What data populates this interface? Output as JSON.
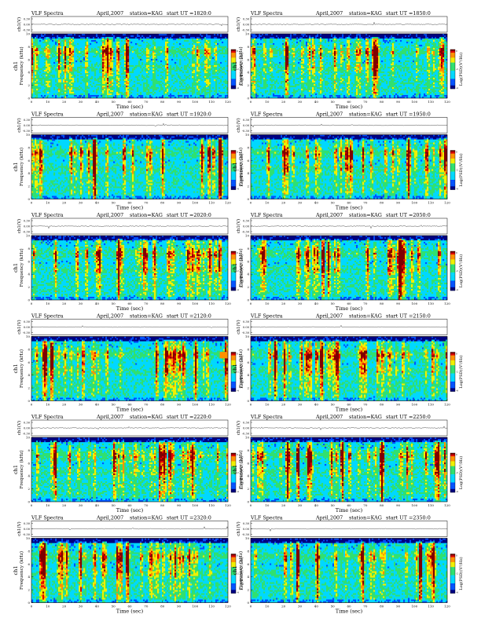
{
  "common": {
    "product": "VLF Spectra",
    "date": "April,2007",
    "station": "station=KAG",
    "ut_prefix": "start  UT =",
    "ch_label": "ch1(V)",
    "ch_ticks": [
      "0.30",
      "0.00",
      "-0.30"
    ],
    "freq_label": "Frequency (kHz)",
    "freq_label_side": "ch1",
    "time_label": "Time (sec)",
    "colorbar_label": "Log(PSD)(V²/Hz)",
    "colorbar_ticks": [
      "0",
      "-2",
      "-4"
    ]
  },
  "colors": {
    "dark_blue": "#000080",
    "blue": "#0050ff",
    "cyan": "#00d8ff",
    "green": "#30e070",
    "yellow": "#f0f000",
    "orange": "#ff9000",
    "red": "#e00000",
    "dark_red": "#800000"
  },
  "chart_data": [
    {
      "type": "heatmap",
      "start_ut": "1820:0",
      "x_ticks": [
        0,
        10,
        20,
        30,
        40,
        50,
        60,
        70,
        80,
        90,
        100,
        110,
        120
      ],
      "xlim": [
        0,
        120
      ],
      "xlabel": "Time (sec)",
      "y_ticks": [
        0,
        2,
        4,
        6,
        8,
        10
      ],
      "ylim": [
        0,
        10
      ],
      "ylabel": "Frequency (kHz)",
      "colorbar_range": [
        -4,
        0
      ],
      "layout": "left",
      "gaps": []
    },
    {
      "type": "heatmap",
      "start_ut": "1850:0",
      "x_ticks": [
        0,
        10,
        20,
        30,
        40,
        50,
        60,
        70,
        80,
        90,
        100,
        110,
        120
      ],
      "xlim": [
        0,
        120
      ],
      "xlabel": "Time (sec)",
      "y_ticks": [
        0,
        2,
        4,
        6,
        8,
        10
      ],
      "ylim": [
        0,
        10
      ],
      "ylabel": "Frequency (kHz)",
      "colorbar_range": [
        -4,
        0
      ],
      "layout": "right",
      "gaps": []
    },
    {
      "type": "heatmap",
      "start_ut": "1920:0",
      "x_ticks": [
        0,
        10,
        20,
        30,
        40,
        50,
        60,
        70,
        80,
        90,
        100,
        110,
        120
      ],
      "xlim": [
        0,
        120
      ],
      "xlabel": "Time (sec)",
      "y_ticks": [
        0,
        2,
        4,
        6,
        8,
        10
      ],
      "ylim": [
        0,
        10
      ],
      "ylabel": "Frequency (kHz)",
      "colorbar_range": [
        -4,
        0
      ],
      "layout": "left",
      "gaps": []
    },
    {
      "type": "heatmap",
      "start_ut": "1950:0",
      "x_ticks": [
        0,
        10,
        20,
        30,
        40,
        50,
        60,
        70,
        80,
        90,
        100,
        110,
        120
      ],
      "xlim": [
        0,
        120
      ],
      "xlabel": "Time (sec)",
      "y_ticks": [
        0,
        2,
        4,
        6,
        8,
        10
      ],
      "ylim": [
        0,
        10
      ],
      "ylabel": "Frequency (kHz)",
      "colorbar_range": [
        -4,
        0
      ],
      "layout": "right",
      "gaps": []
    },
    {
      "type": "heatmap",
      "start_ut": "2020:0",
      "x_ticks": [
        0,
        10,
        20,
        30,
        40,
        50,
        60,
        70,
        80,
        90,
        100,
        110,
        120
      ],
      "xlim": [
        0,
        120
      ],
      "xlabel": "Time (sec)",
      "y_ticks": [
        0,
        2,
        4,
        6,
        8,
        10
      ],
      "ylim": [
        0,
        10
      ],
      "ylabel": "Frequency (kHz)",
      "colorbar_range": [
        -4,
        0
      ],
      "layout": "left",
      "gaps": []
    },
    {
      "type": "heatmap",
      "start_ut": "2050:0",
      "x_ticks": [
        0,
        10,
        20,
        30,
        40,
        50,
        60,
        70,
        80,
        90,
        100,
        110,
        120
      ],
      "xlim": [
        0,
        120
      ],
      "xlabel": "Time (sec)",
      "y_ticks": [
        0,
        2,
        4,
        6,
        8,
        10
      ],
      "ylim": [
        0,
        10
      ],
      "ylabel": "Frequency (kHz)",
      "colorbar_range": [
        -4,
        0
      ],
      "layout": "right",
      "gaps": []
    },
    {
      "type": "heatmap",
      "start_ut": "2120:0",
      "x_ticks": [
        0,
        10,
        20,
        30,
        40,
        50,
        60,
        70,
        80,
        90,
        100,
        110,
        120
      ],
      "xlim": [
        0,
        120
      ],
      "xlabel": "Time (sec)",
      "y_ticks": [
        0,
        2,
        4,
        6,
        8,
        10
      ],
      "ylim": [
        0,
        10
      ],
      "ylabel": "Frequency (kHz)",
      "colorbar_range": [
        -4,
        0
      ],
      "layout": "left",
      "gaps": [
        [
          115,
          120
        ]
      ]
    },
    {
      "type": "heatmap",
      "start_ut": "2150:0",
      "x_ticks": [
        0,
        10,
        20,
        30,
        40,
        50,
        60,
        70,
        80,
        90,
        100,
        110,
        120
      ],
      "xlim": [
        0,
        120
      ],
      "xlabel": "Time (sec)",
      "y_ticks": [
        0,
        2,
        4,
        6,
        8,
        10
      ],
      "ylim": [
        0,
        10
      ],
      "ylabel": "Frequency (kHz)",
      "colorbar_range": [
        -4,
        0
      ],
      "layout": "right",
      "gaps": []
    },
    {
      "type": "heatmap",
      "start_ut": "2220:0",
      "x_ticks": [
        0,
        10,
        20,
        30,
        40,
        50,
        60,
        70,
        80,
        90,
        100,
        110,
        120
      ],
      "xlim": [
        0,
        120
      ],
      "xlabel": "Time (sec)",
      "y_ticks": [
        0,
        2,
        4,
        6,
        8,
        10
      ],
      "ylim": [
        0,
        10
      ],
      "ylabel": "Frequency (kHz)",
      "colorbar_range": [
        -4,
        0
      ],
      "layout": "left",
      "gaps": []
    },
    {
      "type": "heatmap",
      "start_ut": "2250:0",
      "x_ticks": [
        0,
        10,
        20,
        30,
        40,
        50,
        60,
        70,
        80,
        90,
        100,
        110,
        120
      ],
      "xlim": [
        0,
        120
      ],
      "xlabel": "Time (sec)",
      "y_ticks": [
        0,
        2,
        4,
        6,
        8,
        10
      ],
      "ylim": [
        0,
        10
      ],
      "ylabel": "Frequency (kHz)",
      "colorbar_range": [
        -4,
        0
      ],
      "layout": "right",
      "gaps": []
    },
    {
      "type": "heatmap",
      "start_ut": "2320:0",
      "x_ticks": [
        0,
        10,
        20,
        30,
        40,
        50,
        60,
        70,
        80,
        90,
        100,
        110,
        120
      ],
      "xlim": [
        0,
        120
      ],
      "xlabel": "Time (sec)",
      "y_ticks": [
        0,
        2,
        4,
        6,
        8,
        10
      ],
      "ylim": [
        0,
        10
      ],
      "ylabel": "Frequency (kHz)",
      "colorbar_range": [
        -4,
        0
      ],
      "layout": "left",
      "gaps": []
    },
    {
      "type": "heatmap",
      "start_ut": "2350:0",
      "x_ticks": [
        0,
        10,
        20,
        30,
        40,
        50,
        60,
        70,
        80,
        90,
        100,
        110,
        120
      ],
      "xlim": [
        0,
        120
      ],
      "xlabel": "Time (sec)",
      "y_ticks": [
        0,
        2,
        4,
        6,
        8,
        10
      ],
      "ylim": [
        0,
        10
      ],
      "ylabel": "Frequency (kHz)",
      "colorbar_range": [
        -4,
        0
      ],
      "layout": "right",
      "gaps": []
    }
  ]
}
